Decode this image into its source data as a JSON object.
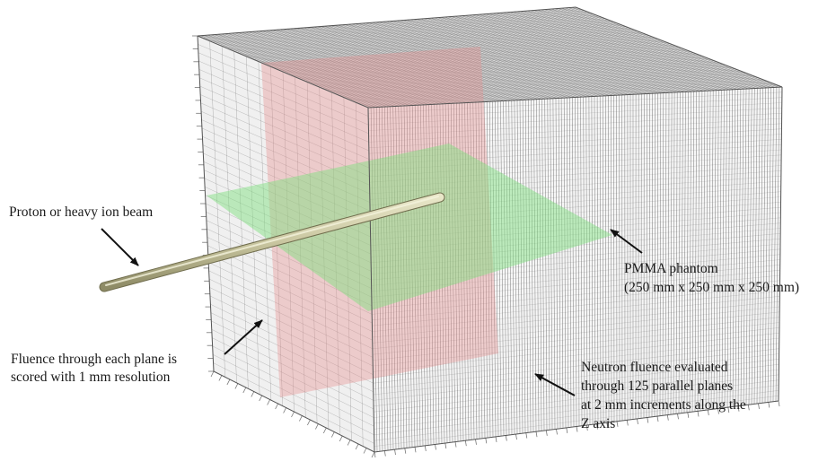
{
  "diagram": {
    "labels": {
      "beam": "Proton or heavy ion beam",
      "phantom_line1": "PMMA phantom",
      "phantom_line2": "(250 mm x 250 mm x 250 mm)",
      "fluence_line1": "Fluence through each plane is",
      "fluence_line2": "scored with 1 mm resolution",
      "neutron_line1": "Neutron fluence evaluated",
      "neutron_line2": "through 125 parallel planes",
      "neutron_line3": "at 2 mm increments along the",
      "neutron_line4": "Z axis"
    },
    "colors": {
      "cube_face": "#f3f3f3",
      "grid_line": "#3c3c3c",
      "red_plane": "#e89a9a",
      "green_plane": "#8fe08f",
      "beam": "#c9c6a0",
      "arrow": "#111111"
    }
  }
}
